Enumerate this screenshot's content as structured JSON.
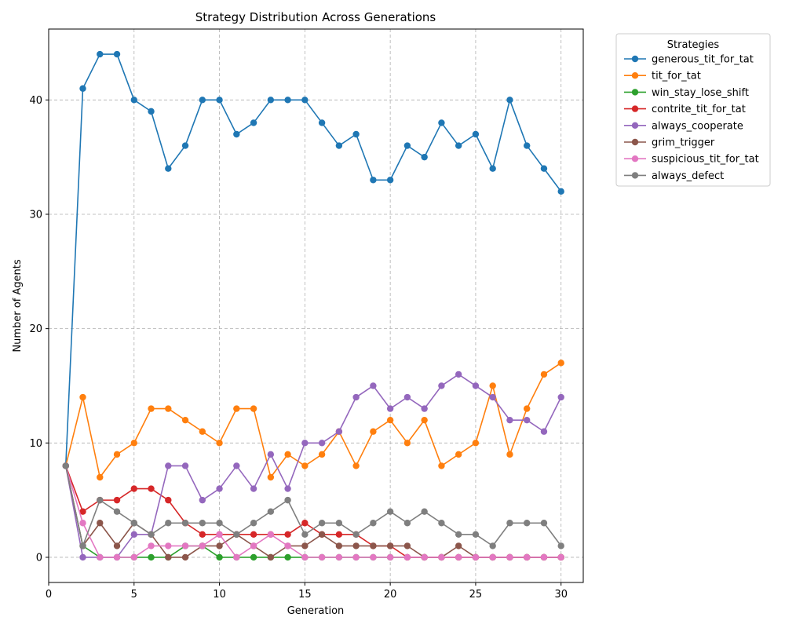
{
  "chart_data": {
    "type": "line",
    "title": "Strategy Distribution Across Generations",
    "xlabel": "Generation",
    "ylabel": "Number of Agents",
    "xlim": [
      0,
      31.3
    ],
    "ylim": [
      -2.2,
      46.2
    ],
    "xticks": [
      0,
      5,
      10,
      15,
      20,
      25,
      30
    ],
    "yticks": [
      0,
      10,
      20,
      30,
      40
    ],
    "grid": true,
    "legend": {
      "title": "Strategies",
      "placement": "outside-top-right"
    },
    "x": [
      1,
      2,
      3,
      4,
      5,
      6,
      7,
      8,
      9,
      10,
      11,
      12,
      13,
      14,
      15,
      16,
      17,
      18,
      19,
      20,
      21,
      22,
      23,
      24,
      25,
      26,
      27,
      28,
      29,
      30
    ],
    "series": [
      {
        "name": "generous_tit_for_tat",
        "color": "#1f77b4",
        "values": [
          8,
          41,
          44,
          44,
          40,
          39,
          34,
          36,
          40,
          40,
          37,
          38,
          40,
          40,
          40,
          38,
          36,
          37,
          33,
          33,
          36,
          35,
          38,
          36,
          37,
          34,
          40,
          36,
          34,
          32
        ]
      },
      {
        "name": "tit_for_tat",
        "color": "#ff7f0e",
        "values": [
          8,
          14,
          7,
          9,
          10,
          13,
          13,
          12,
          11,
          10,
          13,
          13,
          7,
          9,
          8,
          9,
          11,
          8,
          11,
          12,
          10,
          12,
          8,
          9,
          10,
          15,
          9,
          13,
          16,
          17
        ]
      },
      {
        "name": "win_stay_lose_shift",
        "color": "#2ca02c",
        "values": [
          8,
          1,
          0,
          0,
          0,
          0,
          0,
          1,
          1,
          0,
          0,
          0,
          0,
          0,
          0,
          0,
          0,
          0,
          0,
          0,
          0,
          0,
          0,
          0,
          0,
          0,
          0,
          0,
          0,
          0
        ]
      },
      {
        "name": "contrite_tit_for_tat",
        "color": "#d62728",
        "values": [
          8,
          4,
          5,
          5,
          6,
          6,
          5,
          3,
          2,
          2,
          2,
          2,
          2,
          2,
          3,
          2,
          2,
          2,
          1,
          1,
          0,
          0,
          0,
          0,
          0,
          0,
          0,
          0,
          0,
          0
        ]
      },
      {
        "name": "always_cooperate",
        "color": "#9467bd",
        "values": [
          8,
          0,
          0,
          0,
          2,
          2,
          8,
          8,
          5,
          6,
          8,
          6,
          9,
          6,
          10,
          10,
          11,
          14,
          15,
          13,
          14,
          13,
          15,
          16,
          15,
          14,
          12,
          12,
          11,
          14
        ]
      },
      {
        "name": "grim_trigger",
        "color": "#8c564b",
        "values": [
          8,
          1,
          3,
          1,
          3,
          2,
          0,
          0,
          1,
          1,
          2,
          1,
          0,
          1,
          1,
          2,
          1,
          1,
          1,
          1,
          1,
          0,
          0,
          1,
          0,
          0,
          0,
          0,
          0,
          0
        ]
      },
      {
        "name": "suspicious_tit_for_tat",
        "color": "#e377c2",
        "values": [
          8,
          3,
          0,
          0,
          0,
          1,
          1,
          1,
          1,
          2,
          0,
          1,
          2,
          1,
          0,
          0,
          0,
          0,
          0,
          0,
          0,
          0,
          0,
          0,
          0,
          0,
          0,
          0,
          0,
          0
        ]
      },
      {
        "name": "always_defect",
        "color": "#7f7f7f",
        "values": [
          8,
          1,
          5,
          4,
          3,
          2,
          3,
          3,
          3,
          3,
          2,
          3,
          4,
          5,
          2,
          3,
          3,
          2,
          3,
          4,
          3,
          4,
          3,
          2,
          2,
          1,
          3,
          3,
          3,
          1
        ]
      }
    ]
  }
}
